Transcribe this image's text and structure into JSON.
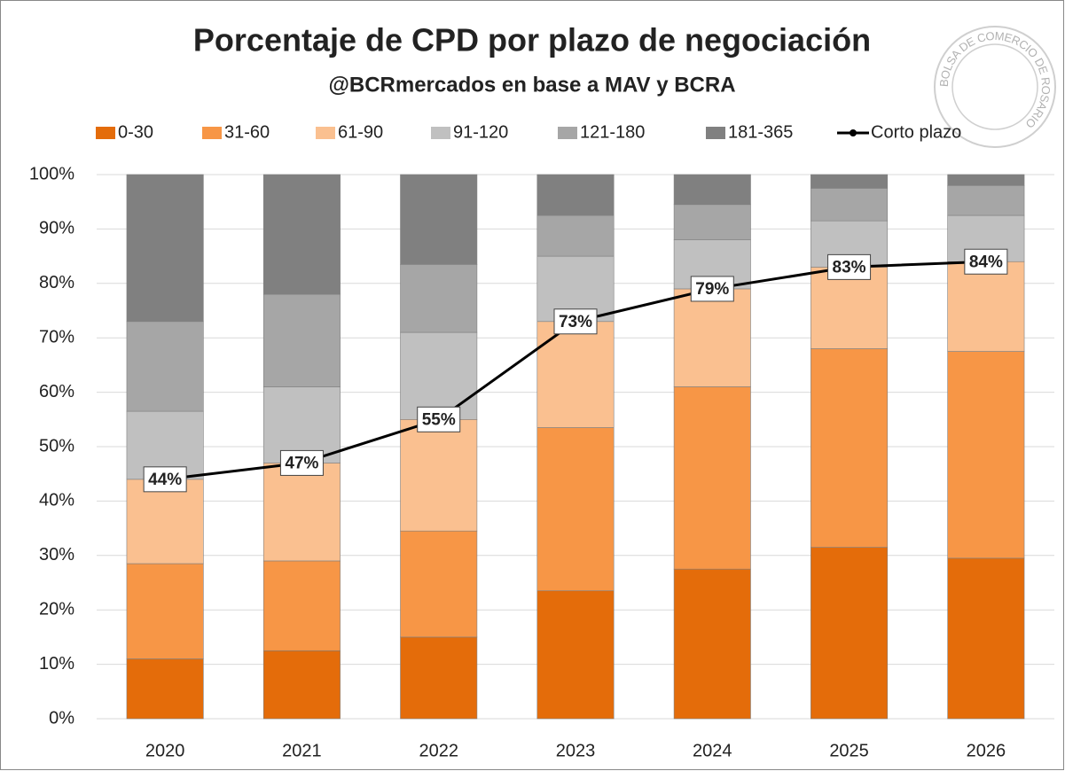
{
  "chart_data": {
    "type": "stacked_bar_line",
    "title": "Porcentaje de CPD por plazo de negociación",
    "subtitle": "@BCRmercados en base a MAV y BCRA",
    "logo_text": "BOLSA DE COMERCIO DE ROSARIO",
    "categories": [
      "2020",
      "2021",
      "2022",
      "2023",
      "2024",
      "2025",
      "2026"
    ],
    "series": [
      {
        "name": "0-30",
        "color": "#e46c0a",
        "values": [
          11,
          12.5,
          15,
          23.5,
          27.5,
          31.5,
          29.5
        ]
      },
      {
        "name": "31-60",
        "color": "#f79646",
        "values": [
          17.5,
          16.5,
          19.5,
          30,
          33.5,
          36.5,
          38
        ]
      },
      {
        "name": "61-90",
        "color": "#fac090",
        "values": [
          15.5,
          18,
          20.5,
          19.5,
          18,
          15,
          16.5
        ]
      },
      {
        "name": "91-120",
        "color": "#c0c0c0",
        "values": [
          12.5,
          14,
          16,
          12,
          9,
          8.5,
          8.5
        ]
      },
      {
        "name": "121-180",
        "color": "#a6a6a6",
        "values": [
          16.5,
          17,
          12.5,
          7.5,
          6.5,
          6,
          5.5
        ]
      },
      {
        "name": "181-365",
        "color": "#808080",
        "values": [
          27,
          22,
          16.5,
          7.5,
          5.5,
          2.5,
          2
        ]
      },
      {
        "name": "Corto plazo",
        "color": "#000000",
        "type": "line",
        "values": [
          44,
          47,
          55,
          73,
          79,
          83,
          84
        ],
        "value_labels": [
          "44%",
          "47%",
          "55%",
          "73%",
          "79%",
          "83%",
          "84%"
        ]
      }
    ],
    "ylim": [
      0,
      100
    ],
    "yticks": [
      {
        "value": 0,
        "label": "0%"
      },
      {
        "value": 10,
        "label": "10%"
      },
      {
        "value": 20,
        "label": "20%"
      },
      {
        "value": 30,
        "label": "30%"
      },
      {
        "value": 40,
        "label": "40%"
      },
      {
        "value": 50,
        "label": "50%"
      },
      {
        "value": 60,
        "label": "60%"
      },
      {
        "value": 70,
        "label": "70%"
      },
      {
        "value": 80,
        "label": "80%"
      },
      {
        "value": 90,
        "label": "90%"
      },
      {
        "value": 100,
        "label": "100%"
      }
    ],
    "grid": true
  }
}
